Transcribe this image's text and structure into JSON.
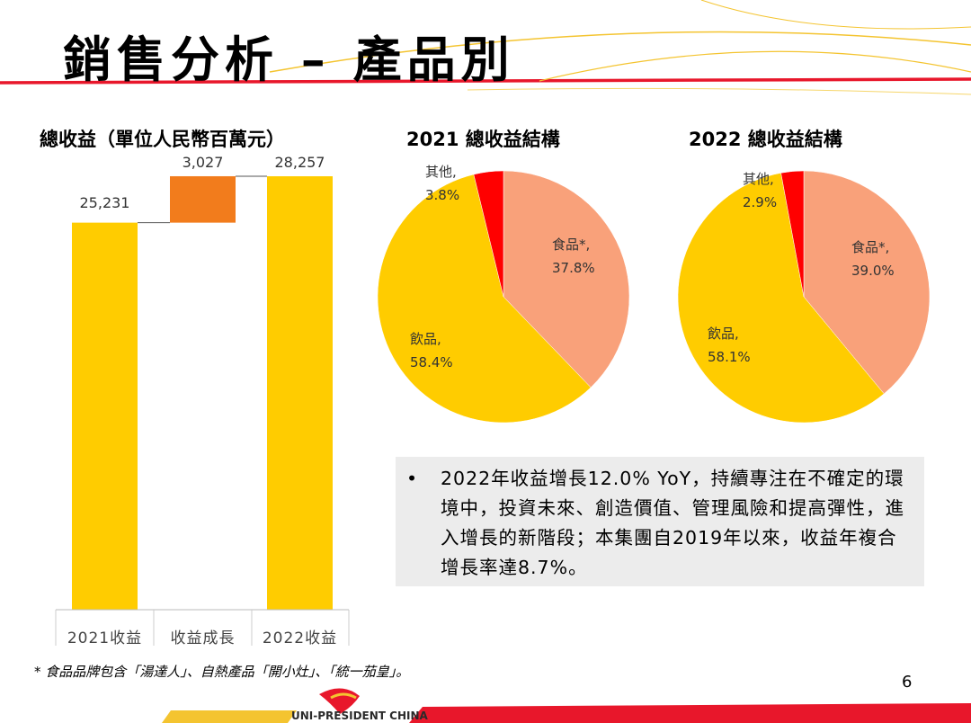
{
  "slide": {
    "title": "銷售分析 – 產品別",
    "footnote": "* 食品品牌包含「湯達人」、自熱產品「開小灶」、「統一茄皇」。",
    "page_number": "6",
    "logo_text": "UNI-PRESIDENT CHINA",
    "note_bullet": "•",
    "note": "2022年收益增長12.0% YoY，持續專注在不確定的環境中，投資未來、創造價值、管理風險和提高彈性，進入增長的新階段；本集團自2019年以來，收益年複合增長率達8.7%。"
  },
  "colors": {
    "yellow": "#FFCC00",
    "orange": "#F27C1C",
    "salmon": "#F9A17A",
    "red": "#FF0000",
    "brand_red": "#E8172B"
  },
  "chart_data": [
    {
      "type": "bar",
      "title": "總收益（單位人民幣百萬元）",
      "categories": [
        "2021收益",
        "收益成長",
        "2022收益"
      ],
      "values": [
        25231,
        3027,
        28257
      ],
      "value_labels": [
        "25,231",
        "3,027",
        "28,257"
      ],
      "waterfall": true
    },
    {
      "type": "pie",
      "title": "2021 總收益結構",
      "labels": [
        "食品*,",
        "飲品,",
        "其他,"
      ],
      "values": [
        37.8,
        58.4,
        3.8
      ],
      "value_labels": [
        "37.8%",
        "58.4%",
        "3.8%"
      ]
    },
    {
      "type": "pie",
      "title": "2022 總收益結構",
      "labels": [
        "食品*,",
        "飲品,",
        "其他,"
      ],
      "values": [
        39.0,
        58.1,
        2.9
      ],
      "value_labels": [
        "39.0%",
        "58.1%",
        "2.9%"
      ]
    }
  ]
}
